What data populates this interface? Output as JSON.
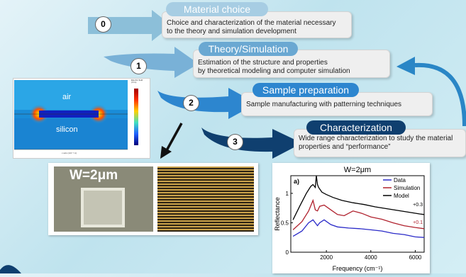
{
  "steps": [
    {
      "num": "0",
      "title": "Material choice",
      "text1": "Choice and characterization of the material necessary",
      "text2": "to the theory and simulation development"
    },
    {
      "num": "1",
      "title": "Theory/Simulation",
      "text1": "Estimation of the structure and properties",
      "text2": "by theoretical modeling and computer simulation"
    },
    {
      "num": "2",
      "title": "Sample preparation",
      "text1": "Sample manufacturing with patterning techniques"
    },
    {
      "num": "3",
      "title": "Characterization",
      "text1": "Wide range characterization to study the material",
      "text2": "properties and “performance”"
    }
  ],
  "simulation": {
    "top_label": "air",
    "bottom_label": "silicon",
    "colorbar_label": "Electric field",
    "colorbar_unit": "(V/m)",
    "xaxis": "x axis (x10⁻³ m)"
  },
  "micrograph": {
    "label": "W=2μm"
  },
  "colors": {
    "step0": "#7fb6d3",
    "step1": "#6aa8d2",
    "step2": "#2d86cf",
    "step3": "#0f3f6f",
    "cycle_arrow": "#2a86c6"
  },
  "chart_data": {
    "type": "line",
    "title": "W=2μm",
    "panel_label": "a)",
    "xlabel": "Frequency (cm⁻¹)",
    "ylabel": "Reflectance",
    "xlim": [
      400,
      6400
    ],
    "ylim": [
      0,
      1.3
    ],
    "xticks": [
      2000,
      4000,
      6000
    ],
    "yticks": [
      0,
      0.5,
      1
    ],
    "ytick_labels": [
      "0",
      "0.5",
      "1"
    ],
    "legend_position": "top-right",
    "series": [
      {
        "name": "Data",
        "color": "#2a2ac8",
        "x": [
          500,
          900,
          1200,
          1400,
          1500,
          1600,
          1700,
          1900,
          2200,
          2500,
          3000,
          3500,
          4000,
          4500,
          5000,
          5500,
          6000,
          6400
        ],
        "y": [
          0.27,
          0.36,
          0.5,
          0.55,
          0.5,
          0.45,
          0.5,
          0.55,
          0.47,
          0.43,
          0.41,
          0.4,
          0.38,
          0.36,
          0.32,
          0.3,
          0.26,
          0.25
        ]
      },
      {
        "name": "Simulation",
        "color": "#b0222e",
        "x": [
          500,
          900,
          1200,
          1400,
          1500,
          1600,
          1700,
          1900,
          2200,
          2500,
          2800,
          3200,
          3600,
          4000,
          4500,
          5000,
          5500,
          6000,
          6400
        ],
        "y": [
          0.38,
          0.52,
          0.7,
          0.88,
          0.72,
          0.7,
          0.78,
          0.8,
          0.72,
          0.64,
          0.62,
          0.7,
          0.66,
          0.6,
          0.56,
          0.5,
          0.45,
          0.42,
          0.4
        ]
      },
      {
        "name": "Model",
        "color": "#000000",
        "x": [
          500,
          800,
          1100,
          1300,
          1400,
          1500,
          1550,
          1600,
          1650,
          1800,
          2000,
          2300,
          2700,
          3200,
          3700,
          4200,
          4700,
          5200,
          5700,
          6200,
          6400
        ],
        "y": [
          0.55,
          0.78,
          1.0,
          1.12,
          1.15,
          1.1,
          1.3,
          1.15,
          1.1,
          1.02,
          0.98,
          0.93,
          0.88,
          0.84,
          0.81,
          0.77,
          0.74,
          0.71,
          0.68,
          0.65,
          0.64
        ]
      }
    ],
    "annotations": [
      "+0.3",
      "+0.1"
    ]
  }
}
